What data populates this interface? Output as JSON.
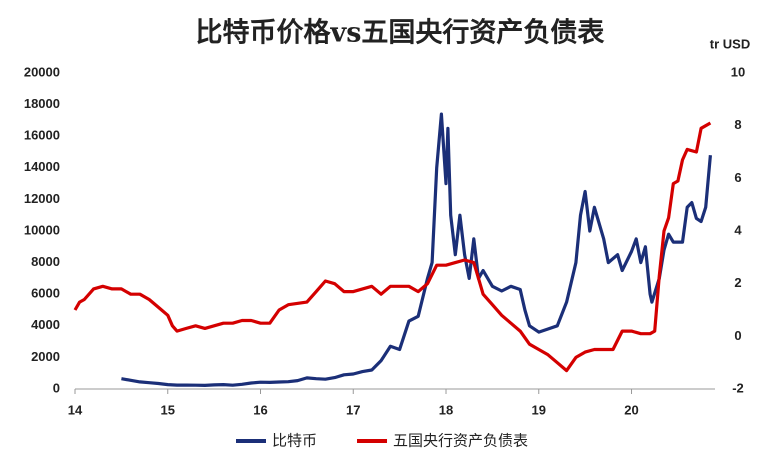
{
  "chart_data": {
    "type": "line",
    "title": "比特币价格vs五国央行资产负债表",
    "y2_label": "tr USD",
    "xlim": [
      14,
      20.9
    ],
    "xticks": [
      14,
      15,
      16,
      17,
      18,
      19,
      20
    ],
    "ylim": [
      0,
      20000
    ],
    "yticks": [
      0,
      2000,
      4000,
      6000,
      8000,
      10000,
      12000,
      14000,
      16000,
      18000,
      20000
    ],
    "y2lim": [
      -2,
      10
    ],
    "y2ticks": [
      -2,
      0,
      2,
      4,
      6,
      8,
      10
    ],
    "legend": "bottom",
    "series": [
      {
        "name": "比特币",
        "color": "#1b2f78",
        "x": [
          14.5,
          14.6,
          14.7,
          14.8,
          14.9,
          15.0,
          15.1,
          15.2,
          15.3,
          15.4,
          15.5,
          15.6,
          15.7,
          15.8,
          15.9,
          16.0,
          16.1,
          16.2,
          16.3,
          16.4,
          16.5,
          16.6,
          16.7,
          16.8,
          16.9,
          17.0,
          17.1,
          17.2,
          17.3,
          17.4,
          17.5,
          17.6,
          17.7,
          17.8,
          17.85,
          17.9,
          17.95,
          18.0,
          18.02,
          18.05,
          18.1,
          18.15,
          18.2,
          18.25,
          18.3,
          18.35,
          18.4,
          18.5,
          18.6,
          18.7,
          18.8,
          18.85,
          18.9,
          19.0,
          19.1,
          19.2,
          19.3,
          19.4,
          19.45,
          19.5,
          19.55,
          19.6,
          19.7,
          19.75,
          19.85,
          19.9,
          20.0,
          20.05,
          20.1,
          20.15,
          20.2,
          20.22,
          20.3,
          20.35,
          20.4,
          20.45,
          20.55,
          20.6,
          20.65,
          20.7,
          20.75,
          20.8,
          20.85
        ],
        "values": [
          650,
          550,
          450,
          400,
          350,
          280,
          250,
          250,
          240,
          230,
          260,
          280,
          240,
          300,
          380,
          430,
          420,
          440,
          460,
          530,
          700,
          650,
          620,
          720,
          900,
          950,
          1100,
          1200,
          1800,
          2700,
          2500,
          4300,
          4600,
          7000,
          8000,
          14000,
          17400,
          13000,
          16500,
          11000,
          8500,
          11000,
          8500,
          7000,
          9500,
          7000,
          7500,
          6500,
          6200,
          6500,
          6300,
          5000,
          4000,
          3600,
          3800,
          4000,
          5500,
          8000,
          11000,
          12500,
          10000,
          11500,
          9500,
          8000,
          8500,
          7500,
          8700,
          9500,
          8000,
          9000,
          6000,
          5500,
          7000,
          8800,
          9800,
          9300,
          9300,
          11500,
          11800,
          10800,
          10600,
          11500,
          14800
        ]
      },
      {
        "name": "五国央行资产负债表",
        "color": "#d40000",
        "axis": "y2",
        "x": [
          14.0,
          14.05,
          14.1,
          14.2,
          14.3,
          14.4,
          14.5,
          14.6,
          14.7,
          14.8,
          14.9,
          15.0,
          15.05,
          15.1,
          15.2,
          15.3,
          15.4,
          15.5,
          15.6,
          15.7,
          15.8,
          15.9,
          16.0,
          16.1,
          16.2,
          16.3,
          16.5,
          16.6,
          16.7,
          16.8,
          16.9,
          17.0,
          17.2,
          17.3,
          17.4,
          17.5,
          17.6,
          17.7,
          17.8,
          17.9,
          18.0,
          18.1,
          18.2,
          18.3,
          18.35,
          18.4,
          18.5,
          18.6,
          18.7,
          18.8,
          18.9,
          19.0,
          19.1,
          19.2,
          19.3,
          19.4,
          19.5,
          19.6,
          19.7,
          19.8,
          19.9,
          20.0,
          20.1,
          20.2,
          20.25,
          20.3,
          20.35,
          20.4,
          20.45,
          20.5,
          20.55,
          20.6,
          20.7,
          20.75,
          20.8,
          20.85
        ],
        "values": [
          1.0,
          1.3,
          1.4,
          1.8,
          1.9,
          1.8,
          1.8,
          1.6,
          1.6,
          1.4,
          1.1,
          0.8,
          0.4,
          0.2,
          0.3,
          0.4,
          0.3,
          0.4,
          0.5,
          0.5,
          0.6,
          0.6,
          0.5,
          0.5,
          1.0,
          1.2,
          1.3,
          1.7,
          2.1,
          2.0,
          1.7,
          1.7,
          1.9,
          1.6,
          1.9,
          1.9,
          1.9,
          1.7,
          2.0,
          2.7,
          2.7,
          2.8,
          2.9,
          2.8,
          2.2,
          1.6,
          1.2,
          0.8,
          0.5,
          0.2,
          -0.3,
          -0.5,
          -0.7,
          -1.0,
          -1.3,
          -0.8,
          -0.6,
          -0.5,
          -0.5,
          -0.5,
          0.2,
          0.2,
          0.1,
          0.1,
          0.2,
          2.3,
          4.0,
          4.5,
          5.8,
          5.9,
          6.7,
          7.1,
          7.0,
          7.9,
          8.0,
          8.1
        ]
      }
    ]
  }
}
